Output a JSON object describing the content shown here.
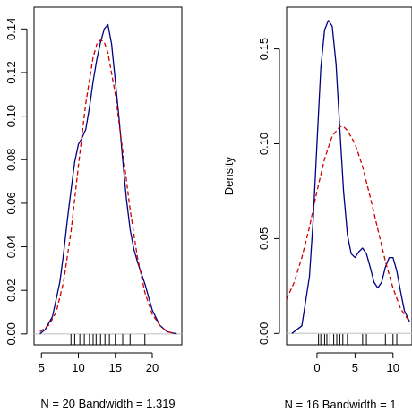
{
  "chart_data": [
    {
      "type": "line",
      "title": "",
      "xlabel": "N = 20   Bandwidth = 1.319",
      "ylabel": "",
      "xlim": [
        4,
        24
      ],
      "ylim": [
        -0.005,
        0.15
      ],
      "grid": false,
      "legend": "none",
      "x_ticks": [
        5,
        10,
        15,
        20
      ],
      "y_ticks": [
        0.0,
        0.02,
        0.04,
        0.06,
        0.08,
        0.1,
        0.12,
        0.14
      ],
      "y_tick_labels": [
        "0.00",
        "0.02",
        "0.04",
        "0.06",
        "0.08",
        "0.10",
        "0.12",
        "0.14"
      ],
      "rug": [
        9,
        9.5,
        10.2,
        10.8,
        11.5,
        12,
        12.4,
        13,
        13.6,
        14.2,
        15,
        16,
        17,
        19
      ],
      "series": [
        {
          "style": "solid",
          "color": "#000080",
          "x": [
            4.8,
            5.5,
            6.5,
            7.5,
            8,
            8.5,
            9,
            9.5,
            10,
            10.5,
            11,
            11.5,
            12,
            12.5,
            13,
            13.5,
            14,
            14.5,
            15,
            15.5,
            16,
            16.5,
            17,
            17.5,
            18,
            18.5,
            19,
            19.5,
            20,
            21,
            22,
            23.3
          ],
          "y": [
            0.0,
            0.002,
            0.008,
            0.024,
            0.037,
            0.052,
            0.066,
            0.079,
            0.087,
            0.09,
            0.094,
            0.104,
            0.116,
            0.126,
            0.134,
            0.14,
            0.142,
            0.133,
            0.116,
            0.099,
            0.08,
            0.062,
            0.048,
            0.039,
            0.033,
            0.028,
            0.023,
            0.017,
            0.011,
            0.004,
            0.001,
            0.0
          ]
        },
        {
          "style": "dashed",
          "color": "#cc0000",
          "x": [
            4.8,
            6,
            7,
            8,
            9,
            10,
            11,
            12,
            12.5,
            13,
            13.5,
            14,
            15,
            16,
            17,
            18,
            19,
            20,
            21,
            22,
            23.3
          ],
          "y": [
            0.001,
            0.004,
            0.01,
            0.024,
            0.047,
            0.077,
            0.106,
            0.127,
            0.133,
            0.135,
            0.134,
            0.129,
            0.11,
            0.084,
            0.057,
            0.035,
            0.019,
            0.009,
            0.004,
            0.001,
            0.0
          ]
        }
      ]
    },
    {
      "type": "line",
      "title": "",
      "xlabel": "N = 16   Bandwidth = 1",
      "ylabel": "Density",
      "xlim": [
        -4,
        12.5
      ],
      "ylim": [
        -0.006,
        0.172
      ],
      "grid": false,
      "legend": "none",
      "x_ticks": [
        0,
        5,
        10
      ],
      "y_ticks": [
        0.0,
        0.05,
        0.1,
        0.15
      ],
      "y_tick_labels": [
        "0.00",
        "0.05",
        "0.10",
        "0.15"
      ],
      "rug": [
        0.2,
        0.5,
        1,
        1.3,
        1.7,
        2.2,
        2.6,
        3,
        3.4,
        4,
        6,
        6.5,
        9,
        10,
        10.5
      ],
      "series": [
        {
          "style": "solid",
          "color": "#000080",
          "x": [
            -3.3,
            -2,
            -1,
            -0.5,
            0,
            0.5,
            1,
            1.5,
            2,
            2.5,
            3,
            3.5,
            4,
            4.5,
            5,
            5.5,
            6,
            6.5,
            7,
            7.5,
            8,
            8.5,
            9,
            9.5,
            10,
            10.5,
            11,
            11.5,
            12.2
          ],
          "y": [
            0.0,
            0.004,
            0.03,
            0.06,
            0.1,
            0.14,
            0.16,
            0.165,
            0.162,
            0.142,
            0.108,
            0.075,
            0.052,
            0.042,
            0.04,
            0.043,
            0.045,
            0.042,
            0.035,
            0.027,
            0.024,
            0.027,
            0.035,
            0.04,
            0.04,
            0.033,
            0.022,
            0.012,
            0.006
          ]
        },
        {
          "style": "dashed",
          "color": "#cc0000",
          "x": [
            -4,
            -3,
            -2,
            -1,
            0,
            1,
            2,
            3,
            3.5,
            4,
            5,
            6,
            7,
            8,
            9,
            10,
            11,
            12.2
          ],
          "y": [
            0.018,
            0.027,
            0.04,
            0.056,
            0.075,
            0.092,
            0.104,
            0.109,
            0.109,
            0.107,
            0.1,
            0.088,
            0.072,
            0.055,
            0.038,
            0.024,
            0.013,
            0.006
          ]
        }
      ]
    }
  ]
}
